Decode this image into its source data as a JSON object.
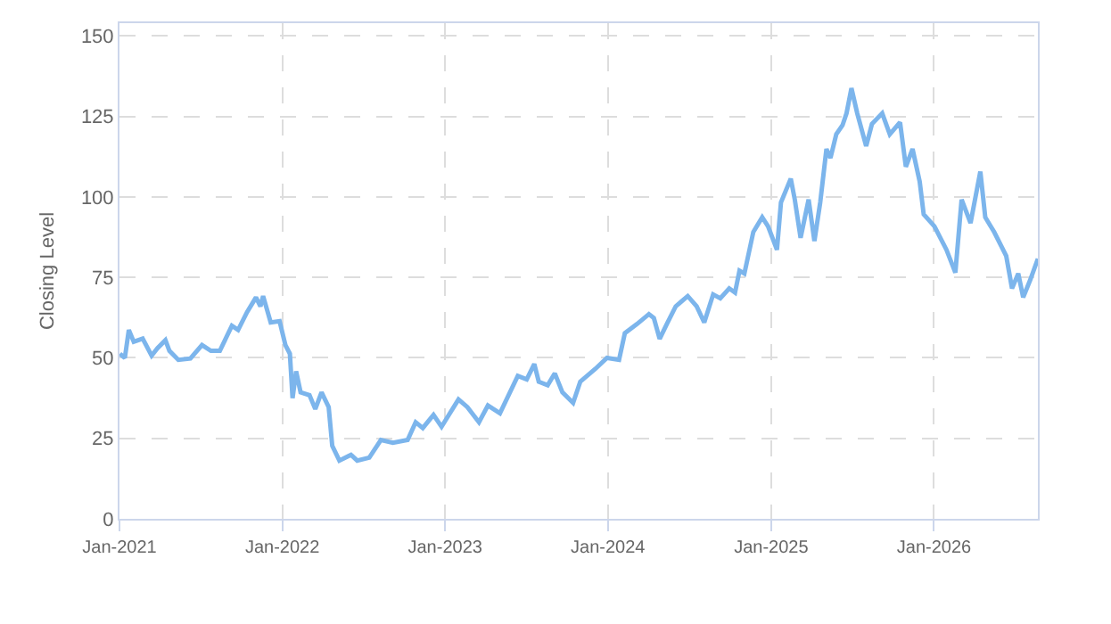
{
  "chart_data": {
    "type": "line",
    "ylabel": "Closing Level",
    "xlim": [
      "2021-01-01",
      "2026-08-22"
    ],
    "ylim": [
      0,
      154
    ],
    "xticks": [
      {
        "value": "2021-01-01",
        "label": "Jan-2021"
      },
      {
        "value": "2022-01-01",
        "label": "Jan-2022"
      },
      {
        "value": "2023-01-01",
        "label": "Jan-2023"
      },
      {
        "value": "2024-01-01",
        "label": "Jan-2024"
      },
      {
        "value": "2025-01-01",
        "label": "Jan-2025"
      },
      {
        "value": "2026-01-01",
        "label": "Jan-2026"
      }
    ],
    "yticks": [
      0,
      25,
      50,
      75,
      100,
      125,
      150
    ],
    "grid": true,
    "marker": "none",
    "line_style": "solid",
    "x": [
      "2021-01-02",
      "2021-01-13",
      "2021-01-22",
      "2021-02-02",
      "2021-02-22",
      "2021-03-14",
      "2021-03-27",
      "2021-04-14",
      "2021-04-23",
      "2021-05-13",
      "2021-06-09",
      "2021-07-05",
      "2021-07-25",
      "2021-08-14",
      "2021-09-10",
      "2021-09-24",
      "2021-10-14",
      "2021-11-03",
      "2021-11-13",
      "2021-11-19",
      "2021-12-06",
      "2021-12-26",
      "2022-01-08",
      "2022-01-18",
      "2022-01-24",
      "2022-02-01",
      "2022-02-11",
      "2022-03-03",
      "2022-03-16",
      "2022-03-30",
      "2022-04-15",
      "2022-04-23",
      "2022-05-09",
      "2022-06-04",
      "2022-06-18",
      "2022-07-15",
      "2022-08-10",
      "2022-09-06",
      "2022-10-09",
      "2022-10-27",
      "2022-11-12",
      "2022-12-06",
      "2022-12-24",
      "2023-01-31",
      "2023-02-20",
      "2023-03-18",
      "2023-04-07",
      "2023-05-04",
      "2023-06-13",
      "2023-07-03",
      "2023-07-20",
      "2023-07-30",
      "2023-08-19",
      "2023-09-04",
      "2023-09-21",
      "2023-10-15",
      "2023-10-31",
      "2023-12-04",
      "2023-12-30",
      "2024-01-26",
      "2024-02-08",
      "2024-03-06",
      "2024-04-02",
      "2024-04-13",
      "2024-04-26",
      "2024-05-12",
      "2024-06-01",
      "2024-06-28",
      "2024-07-18",
      "2024-08-04",
      "2024-08-24",
      "2024-09-09",
      "2024-09-29",
      "2024-10-12",
      "2024-10-22",
      "2024-11-02",
      "2024-11-22",
      "2024-12-12",
      "2024-12-25",
      "2025-01-14",
      "2025-01-23",
      "2025-02-14",
      "2025-02-23",
      "2025-03-08",
      "2025-03-26",
      "2025-04-08",
      "2025-04-21",
      "2025-05-05",
      "2025-05-14",
      "2025-05-27",
      "2025-06-10",
      "2025-06-19",
      "2025-06-30",
      "2025-07-13",
      "2025-08-02",
      "2025-08-15",
      "2025-09-07",
      "2025-09-24",
      "2025-10-17",
      "2025-10-30",
      "2025-11-14",
      "2025-11-30",
      "2025-12-09",
      "2026-01-02",
      "2026-01-29",
      "2026-02-18",
      "2026-03-04",
      "2026-03-24",
      "2026-04-15",
      "2026-04-26",
      "2026-05-16",
      "2026-06-12",
      "2026-06-25",
      "2026-07-09",
      "2026-07-20",
      "2026-08-05",
      "2026-08-22"
    ],
    "series": [
      {
        "color": "#7cb5ec",
        "values": [
          51.3,
          50,
          58.7,
          55,
          56,
          50.7,
          53,
          55.5,
          52.2,
          49.4,
          49.8,
          54,
          52.2,
          52.2,
          60,
          58.7,
          64.2,
          68.8,
          66,
          69.2,
          61,
          61.4,
          54,
          51.3,
          37.5,
          45.8,
          39.3,
          38.4,
          34.1,
          39.3,
          34.7,
          22.7,
          18.1,
          19.9,
          18.1,
          19,
          24.5,
          23.6,
          24.5,
          30,
          28.2,
          32.3,
          28.6,
          37.1,
          34.7,
          30,
          35.2,
          32.8,
          44.4,
          43.3,
          48.1,
          42.6,
          41.5,
          45.2,
          39.3,
          36,
          42.6,
          46.6,
          50,
          49.4,
          57.7,
          60.5,
          63.6,
          62.4,
          55.9,
          60.5,
          66,
          69.2,
          66,
          61,
          69.7,
          68.5,
          71.6,
          70.3,
          77.1,
          76.2,
          89.1,
          93.7,
          90.9,
          83.6,
          98.3,
          105.7,
          99.2,
          87.3,
          99.2,
          86.3,
          98.3,
          114.9,
          112.1,
          119.5,
          122.3,
          126,
          133.8,
          126,
          115.8,
          122.7,
          126,
          119.5,
          123.2,
          109.4,
          114.9,
          104.8,
          94.6,
          90.9,
          83.6,
          76.5,
          99.2,
          91.9,
          107.9,
          93.7,
          89.1,
          81.7,
          71.6,
          76.2,
          68.8,
          74.3,
          80.8
        ]
      }
    ]
  }
}
